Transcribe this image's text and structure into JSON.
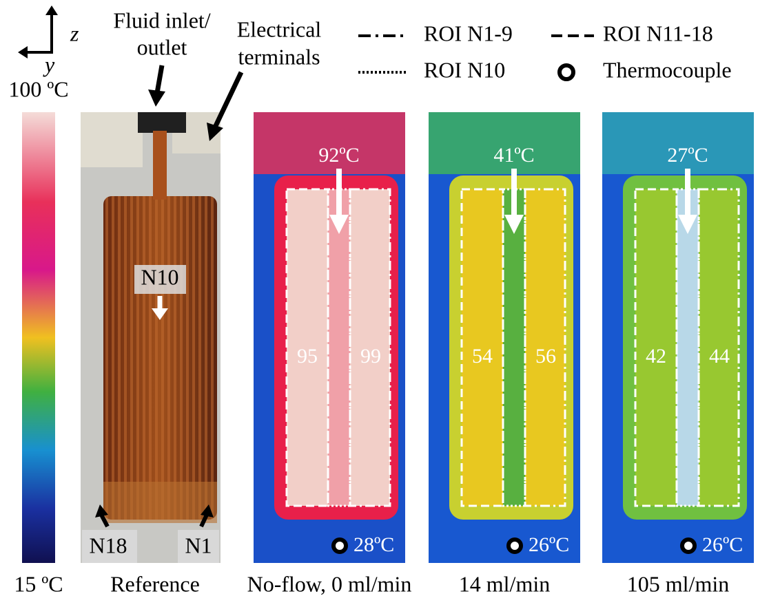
{
  "axes": {
    "z": "z",
    "y": "y"
  },
  "colorbar": {
    "max": "100 ºC",
    "min": "15 ºC"
  },
  "annotations": {
    "inlet": [
      "Fluid inlet/",
      "outlet"
    ],
    "terminals": [
      "Electrical",
      "terminals"
    ],
    "n10": "N10",
    "n18": "N18",
    "n1": "N1"
  },
  "legend": [
    "ROI N1-9",
    "ROI N11-18",
    "ROI N10",
    "Thermocouple"
  ],
  "panels": [
    {
      "caption": "Reference"
    },
    {
      "caption": "No-flow, 0 ml/min",
      "inlet_temp": "92ºC",
      "left_roi": 95,
      "right_roi": 99,
      "thermocouple": "28ºC"
    },
    {
      "caption": "14 ml/min",
      "inlet_temp": "41ºC",
      "left_roi": 54,
      "right_roi": 56,
      "thermocouple": "26ºC"
    },
    {
      "caption": "105 ml/min",
      "inlet_temp": "27ºC",
      "left_roi": 42,
      "right_roi": 44,
      "thermocouple": "26ºC"
    }
  ]
}
